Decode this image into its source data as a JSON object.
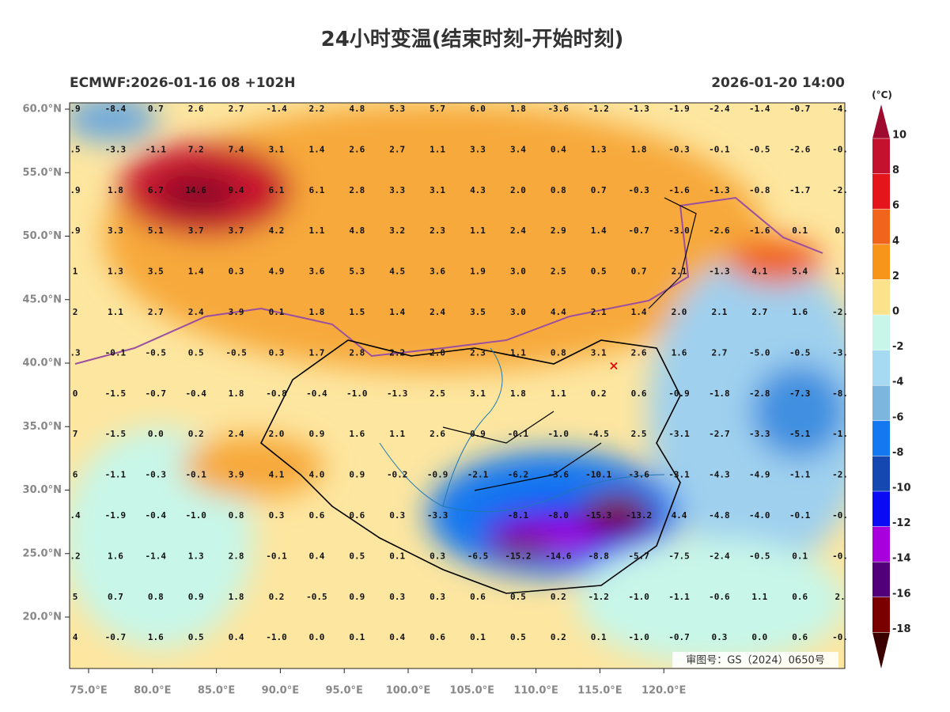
{
  "header": {
    "title": "24小时变温(结束时刻-开始时刻)",
    "left": "ECMWF:2026-01-16 08 +102H",
    "right": "2026-01-20 14:00"
  },
  "map": {
    "lon_ticks": [
      {
        "value": 75,
        "label": "75.0°E"
      },
      {
        "value": 80,
        "label": "80.0°E"
      },
      {
        "value": 85,
        "label": "85.0°E"
      },
      {
        "value": 90,
        "label": "90.0°E"
      },
      {
        "value": 95,
        "label": "95.0°E"
      },
      {
        "value": 100,
        "label": "100.0°E"
      },
      {
        "value": 105,
        "label": "105.0°E"
      },
      {
        "value": 110,
        "label": "110.0°E"
      },
      {
        "value": 115,
        "label": "115.0°E"
      },
      {
        "value": 120,
        "label": "120.0°E"
      }
    ],
    "lat_ticks": [
      {
        "value": 60,
        "label": "60.0°N"
      },
      {
        "value": 55,
        "label": "55.0°N"
      },
      {
        "value": 50,
        "label": "50.0°N"
      },
      {
        "value": 45,
        "label": "45.0°N"
      },
      {
        "value": 40,
        "label": "40.0°N"
      },
      {
        "value": 35,
        "label": "35.0°N"
      },
      {
        "value": 30,
        "label": "30.0°N"
      },
      {
        "value": 25,
        "label": "25.0°N"
      },
      {
        "value": 20,
        "label": "20.0°N"
      }
    ],
    "grid_labels": [
      [
        ".9",
        "-8.4",
        "0.7",
        "2.6",
        "2.7",
        "-1.4",
        "2.2",
        "4.8",
        "5.3",
        "5.7",
        "6.0",
        "1.8",
        "-3.6",
        "-1.2",
        "-1.3",
        "-1.9",
        "-2.4",
        "-1.4",
        "-0.7",
        "-4."
      ],
      [
        ".5",
        "-3.3",
        "-1.1",
        "7.2",
        "7.4",
        "3.1",
        "1.4",
        "2.6",
        "2.7",
        "1.1",
        "3.3",
        "3.4",
        "0.4",
        "1.3",
        "1.8",
        "-0.3",
        "-0.1",
        "-0.5",
        "-2.6",
        "-0."
      ],
      [
        ".9",
        "1.8",
        "6.7",
        "14.6",
        "9.4",
        "6.1",
        "6.1",
        "2.8",
        "3.3",
        "3.1",
        "4.3",
        "2.0",
        "0.8",
        "0.7",
        "-0.3",
        "-1.6",
        "-1.3",
        "-0.8",
        "-1.7",
        "-2."
      ],
      [
        ".9",
        "3.3",
        "5.1",
        "3.7",
        "3.7",
        "4.2",
        "1.1",
        "4.8",
        "3.2",
        "2.3",
        "1.1",
        "2.4",
        "2.9",
        "1.4",
        "-0.7",
        "-3.0",
        "-2.6",
        "-1.6",
        "0.1",
        "0."
      ],
      [
        "1",
        "1.3",
        "3.5",
        "1.4",
        "0.3",
        "4.9",
        "3.6",
        "5.3",
        "4.5",
        "3.6",
        "1.9",
        "3.0",
        "2.5",
        "0.5",
        "0.7",
        "2.1",
        "-1.3",
        "4.1",
        "5.4",
        "1."
      ],
      [
        "2",
        "1.1",
        "2.7",
        "2.4",
        "3.9",
        "0.1",
        "1.8",
        "1.5",
        "1.4",
        "2.4",
        "3.5",
        "3.0",
        "4.4",
        "2.1",
        "1.4",
        "2.0",
        "2.1",
        "2.7",
        "1.6",
        "-2."
      ],
      [
        ".3",
        "-0.1",
        "-0.5",
        "0.5",
        "-0.5",
        "0.3",
        "1.7",
        "2.8",
        "2.2",
        "2.0",
        "2.3",
        "1.1",
        "0.8",
        "3.1",
        "2.6",
        "1.6",
        "2.7",
        "-5.0",
        "-0.5",
        "-3."
      ],
      [
        "0",
        "-1.5",
        "-0.7",
        "-0.4",
        "1.8",
        "-0.8",
        "-0.4",
        "-1.0",
        "-1.3",
        "2.5",
        "3.1",
        "1.8",
        "1.1",
        "0.2",
        "0.6",
        "-0.9",
        "-1.8",
        "-2.8",
        "-7.3",
        "-8."
      ],
      [
        "7",
        "-1.5",
        "0.0",
        "0.2",
        "2.4",
        "2.0",
        "0.9",
        "1.6",
        "1.1",
        "2.6",
        "0.9",
        "-0.1",
        "-1.0",
        "-4.5",
        "2.5",
        "-3.1",
        "-2.7",
        "-3.3",
        "-5.1",
        "-1."
      ],
      [
        "6",
        "-1.1",
        "-0.3",
        "-0.1",
        "3.9",
        "4.1",
        "4.0",
        "0.9",
        "-0.2",
        "-0.9",
        "-2.1",
        "-6.2",
        "-3.6",
        "-10.1",
        "-3.6",
        "-3.1",
        "-4.3",
        "-4.9",
        "-1.1",
        "-2."
      ],
      [
        ".4",
        "-1.9",
        "-0.4",
        "-1.0",
        "0.8",
        "0.3",
        "0.6",
        "0.6",
        "0.3",
        "-3.3",
        null,
        "-8.1",
        "-8.0",
        "-15.3",
        "-13.2",
        "4.4",
        "-4.8",
        "-4.0",
        "-0.1",
        "-0."
      ],
      [
        ".2",
        "1.6",
        "-1.4",
        "1.3",
        "2.8",
        "-0.1",
        "0.4",
        "0.5",
        "0.1",
        "0.3",
        "-6.5",
        "-15.2",
        "-14.6",
        "-8.8",
        "-5.7",
        "-7.5",
        "-2.4",
        "-0.5",
        "0.1",
        "-0."
      ],
      [
        "5",
        "0.7",
        "0.8",
        "0.9",
        "1.8",
        "0.2",
        "-0.5",
        "0.9",
        "0.3",
        "0.3",
        "0.6",
        "0.5",
        "0.2",
        "-1.2",
        "-1.0",
        "-1.1",
        "-0.6",
        "1.1",
        "0.6",
        "2."
      ],
      [
        "4",
        "-0.7",
        "1.6",
        "0.5",
        "0.4",
        "-1.0",
        "0.0",
        "0.1",
        "0.4",
        "0.6",
        "0.1",
        "0.5",
        "0.2",
        "0.1",
        "-1.0",
        "-0.7",
        "0.3",
        "0.0",
        "0.6",
        "-0."
      ]
    ],
    "credit": "审图号：GS（2024）0650号"
  },
  "colorbar": {
    "unit": "(°C)",
    "ticks": [
      10,
      8,
      6,
      4,
      2,
      0,
      -2,
      -4,
      -6,
      -8,
      -10,
      -12,
      -14,
      -16,
      -18
    ],
    "colors": [
      "#9e0b2f",
      "#c4112e",
      "#e5151c",
      "#f0641c",
      "#f7941a",
      "#fde28c",
      "#c8f6e8",
      "#a6d9f2",
      "#7cb6df",
      "#1478f0",
      "#1548b0",
      "#0a0af5",
      "#a800dc",
      "#52007a",
      "#7a0000",
      "#3a0000"
    ]
  }
}
